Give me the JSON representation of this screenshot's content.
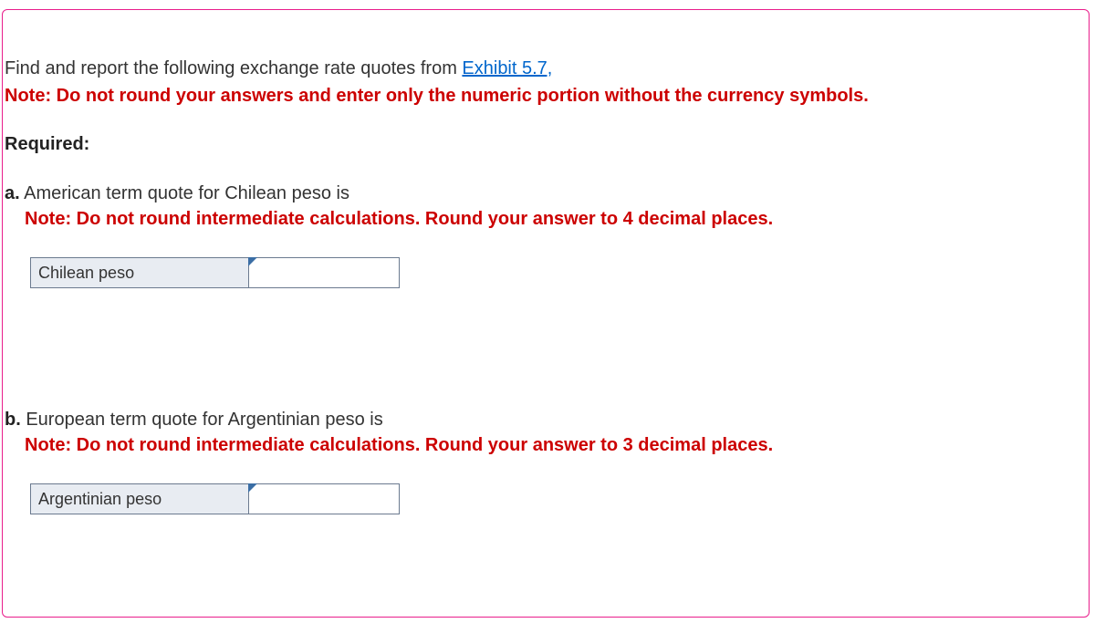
{
  "intro": {
    "text_before_link": "Find and report the following exchange rate quotes from ",
    "link_text": "Exhibit 5.7,",
    "link_color": "#0066cc"
  },
  "main_note": "Note: Do not round your answers and enter only the numeric portion without the currency symbols.",
  "required_label": "Required:",
  "question_a": {
    "marker": "a.",
    "text": " American term quote for Chilean peso is",
    "note": "Note: Do not round intermediate calculations. Round your answer to 4 decimal places.",
    "label": "Chilean peso",
    "value": ""
  },
  "question_b": {
    "marker": "b.",
    "text": " European term quote for Argentinian peso is",
    "note": "Note: Do not round intermediate calculations. Round your answer to 3 decimal places.",
    "label": "Argentinian peso",
    "value": ""
  },
  "colors": {
    "border": "#e91e8c",
    "red_text": "#cc0000",
    "body_text": "#333333",
    "cell_bg": "#e8ecf2",
    "cell_border": "#6b7a8f",
    "corner": "#3b6ea5"
  }
}
